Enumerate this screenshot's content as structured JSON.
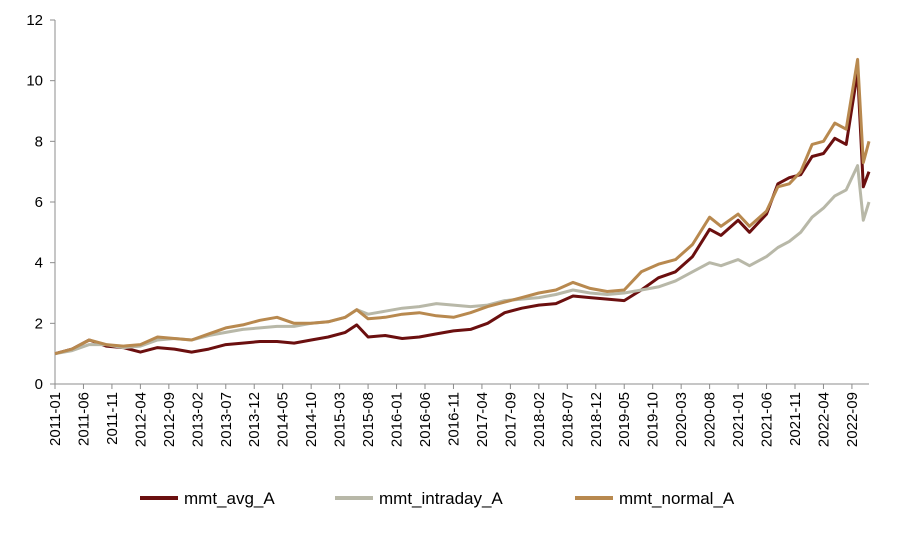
{
  "chart_data": {
    "type": "line",
    "title": "",
    "xlabel": "",
    "ylabel": "",
    "ylim": [
      0,
      12
    ],
    "yticks": [
      0,
      2,
      4,
      6,
      8,
      10,
      12
    ],
    "x_start": "2011-01",
    "x_end": "2022-12",
    "xticks": [
      "2011-01",
      "2011-06",
      "2011-11",
      "2012-04",
      "2012-09",
      "2013-02",
      "2013-07",
      "2013-12",
      "2014-05",
      "2014-10",
      "2015-03",
      "2015-08",
      "2016-01",
      "2016-06",
      "2016-11",
      "2017-04",
      "2017-09",
      "2018-02",
      "2018-07",
      "2018-12",
      "2019-05",
      "2019-10",
      "2020-03",
      "2020-08",
      "2021-01",
      "2021-06",
      "2021-11",
      "2022-04",
      "2022-09"
    ],
    "grid": false,
    "legend_position": "bottom",
    "series": [
      {
        "name": "mmt_avg_A",
        "color": "#6b0f0f",
        "points": [
          [
            "2011-01",
            1.0
          ],
          [
            "2011-04",
            1.15
          ],
          [
            "2011-07",
            1.45
          ],
          [
            "2011-10",
            1.25
          ],
          [
            "2012-01",
            1.2
          ],
          [
            "2012-04",
            1.05
          ],
          [
            "2012-07",
            1.2
          ],
          [
            "2012-10",
            1.15
          ],
          [
            "2013-01",
            1.05
          ],
          [
            "2013-04",
            1.15
          ],
          [
            "2013-07",
            1.3
          ],
          [
            "2013-10",
            1.35
          ],
          [
            "2014-01",
            1.4
          ],
          [
            "2014-04",
            1.4
          ],
          [
            "2014-07",
            1.35
          ],
          [
            "2014-10",
            1.45
          ],
          [
            "2015-01",
            1.55
          ],
          [
            "2015-04",
            1.7
          ],
          [
            "2015-06",
            1.95
          ],
          [
            "2015-08",
            1.55
          ],
          [
            "2015-11",
            1.6
          ],
          [
            "2016-02",
            1.5
          ],
          [
            "2016-05",
            1.55
          ],
          [
            "2016-08",
            1.65
          ],
          [
            "2016-11",
            1.75
          ],
          [
            "2017-02",
            1.8
          ],
          [
            "2017-05",
            2.0
          ],
          [
            "2017-08",
            2.35
          ],
          [
            "2017-11",
            2.5
          ],
          [
            "2018-02",
            2.6
          ],
          [
            "2018-05",
            2.65
          ],
          [
            "2018-08",
            2.9
          ],
          [
            "2018-11",
            2.85
          ],
          [
            "2019-02",
            2.8
          ],
          [
            "2019-05",
            2.75
          ],
          [
            "2019-08",
            3.1
          ],
          [
            "2019-11",
            3.5
          ],
          [
            "2020-02",
            3.7
          ],
          [
            "2020-05",
            4.2
          ],
          [
            "2020-08",
            5.1
          ],
          [
            "2020-10",
            4.9
          ],
          [
            "2021-01",
            5.4
          ],
          [
            "2021-03",
            5.0
          ],
          [
            "2021-06",
            5.6
          ],
          [
            "2021-08",
            6.6
          ],
          [
            "2021-10",
            6.8
          ],
          [
            "2021-12",
            6.9
          ],
          [
            "2022-02",
            7.5
          ],
          [
            "2022-04",
            7.6
          ],
          [
            "2022-06",
            8.1
          ],
          [
            "2022-08",
            7.9
          ],
          [
            "2022-10",
            10.3
          ],
          [
            "2022-11",
            6.5
          ],
          [
            "2022-12",
            7.0
          ]
        ]
      },
      {
        "name": "mmt_intraday_A",
        "color": "#b8b8a8",
        "points": [
          [
            "2011-01",
            1.0
          ],
          [
            "2011-04",
            1.1
          ],
          [
            "2011-07",
            1.3
          ],
          [
            "2011-10",
            1.3
          ],
          [
            "2012-01",
            1.2
          ],
          [
            "2012-04",
            1.25
          ],
          [
            "2012-07",
            1.45
          ],
          [
            "2012-10",
            1.5
          ],
          [
            "2013-01",
            1.45
          ],
          [
            "2013-04",
            1.6
          ],
          [
            "2013-07",
            1.7
          ],
          [
            "2013-10",
            1.8
          ],
          [
            "2014-01",
            1.85
          ],
          [
            "2014-04",
            1.9
          ],
          [
            "2014-07",
            1.9
          ],
          [
            "2014-10",
            2.0
          ],
          [
            "2015-01",
            2.05
          ],
          [
            "2015-04",
            2.2
          ],
          [
            "2015-06",
            2.45
          ],
          [
            "2015-08",
            2.3
          ],
          [
            "2015-11",
            2.4
          ],
          [
            "2016-02",
            2.5
          ],
          [
            "2016-05",
            2.55
          ],
          [
            "2016-08",
            2.65
          ],
          [
            "2016-11",
            2.6
          ],
          [
            "2017-02",
            2.55
          ],
          [
            "2017-05",
            2.6
          ],
          [
            "2017-08",
            2.75
          ],
          [
            "2017-11",
            2.8
          ],
          [
            "2018-02",
            2.85
          ],
          [
            "2018-05",
            2.95
          ],
          [
            "2018-08",
            3.1
          ],
          [
            "2018-11",
            3.0
          ],
          [
            "2019-02",
            2.95
          ],
          [
            "2019-05",
            3.0
          ],
          [
            "2019-08",
            3.1
          ],
          [
            "2019-11",
            3.2
          ],
          [
            "2020-02",
            3.4
          ],
          [
            "2020-05",
            3.7
          ],
          [
            "2020-08",
            4.0
          ],
          [
            "2020-10",
            3.9
          ],
          [
            "2021-01",
            4.1
          ],
          [
            "2021-03",
            3.9
          ],
          [
            "2021-06",
            4.2
          ],
          [
            "2021-08",
            4.5
          ],
          [
            "2021-10",
            4.7
          ],
          [
            "2021-12",
            5.0
          ],
          [
            "2022-02",
            5.5
          ],
          [
            "2022-04",
            5.8
          ],
          [
            "2022-06",
            6.2
          ],
          [
            "2022-08",
            6.4
          ],
          [
            "2022-10",
            7.2
          ],
          [
            "2022-11",
            5.4
          ],
          [
            "2022-12",
            6.0
          ]
        ]
      },
      {
        "name": "mmt_normal_A",
        "color": "#b8894f",
        "points": [
          [
            "2011-01",
            1.0
          ],
          [
            "2011-04",
            1.15
          ],
          [
            "2011-07",
            1.45
          ],
          [
            "2011-10",
            1.3
          ],
          [
            "2012-01",
            1.25
          ],
          [
            "2012-04",
            1.3
          ],
          [
            "2012-07",
            1.55
          ],
          [
            "2012-10",
            1.5
          ],
          [
            "2013-01",
            1.45
          ],
          [
            "2013-04",
            1.65
          ],
          [
            "2013-07",
            1.85
          ],
          [
            "2013-10",
            1.95
          ],
          [
            "2014-01",
            2.1
          ],
          [
            "2014-04",
            2.2
          ],
          [
            "2014-07",
            2.0
          ],
          [
            "2014-10",
            2.0
          ],
          [
            "2015-01",
            2.05
          ],
          [
            "2015-04",
            2.2
          ],
          [
            "2015-06",
            2.45
          ],
          [
            "2015-08",
            2.15
          ],
          [
            "2015-11",
            2.2
          ],
          [
            "2016-02",
            2.3
          ],
          [
            "2016-05",
            2.35
          ],
          [
            "2016-08",
            2.25
          ],
          [
            "2016-11",
            2.2
          ],
          [
            "2017-02",
            2.35
          ],
          [
            "2017-05",
            2.55
          ],
          [
            "2017-08",
            2.7
          ],
          [
            "2017-11",
            2.85
          ],
          [
            "2018-02",
            3.0
          ],
          [
            "2018-05",
            3.1
          ],
          [
            "2018-08",
            3.35
          ],
          [
            "2018-11",
            3.15
          ],
          [
            "2019-02",
            3.05
          ],
          [
            "2019-05",
            3.1
          ],
          [
            "2019-08",
            3.7
          ],
          [
            "2019-11",
            3.95
          ],
          [
            "2020-02",
            4.1
          ],
          [
            "2020-05",
            4.6
          ],
          [
            "2020-08",
            5.5
          ],
          [
            "2020-10",
            5.2
          ],
          [
            "2021-01",
            5.6
          ],
          [
            "2021-03",
            5.2
          ],
          [
            "2021-06",
            5.7
          ],
          [
            "2021-08",
            6.5
          ],
          [
            "2021-10",
            6.6
          ],
          [
            "2021-12",
            7.0
          ],
          [
            "2022-02",
            7.9
          ],
          [
            "2022-04",
            8.0
          ],
          [
            "2022-06",
            8.6
          ],
          [
            "2022-08",
            8.4
          ],
          [
            "2022-10",
            10.7
          ],
          [
            "2022-11",
            7.3
          ],
          [
            "2022-12",
            8.0
          ]
        ]
      }
    ]
  }
}
